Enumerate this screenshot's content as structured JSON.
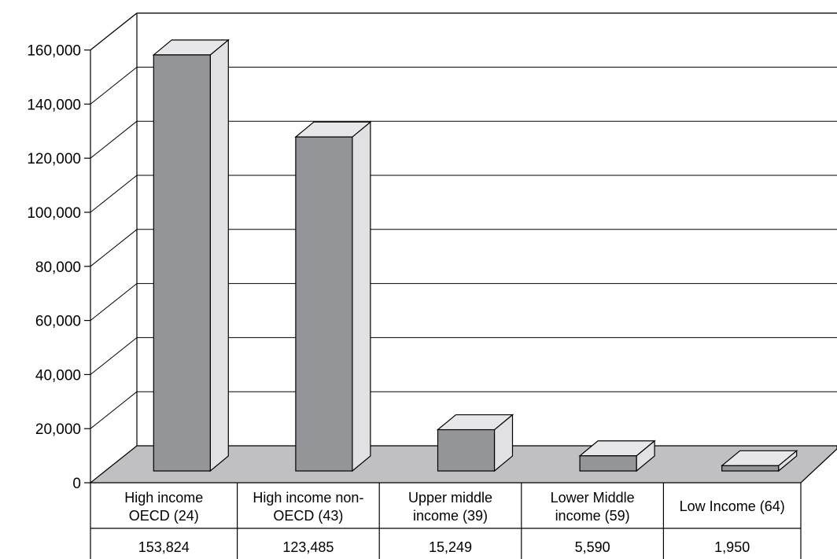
{
  "chart_data": {
    "type": "bar",
    "title": "",
    "xlabel": "",
    "ylabel": "",
    "ylim": [
      0,
      160000
    ],
    "yticks": [
      "0",
      "20,000",
      "40,000",
      "60,000",
      "80,000",
      "100,000",
      "120,000",
      "140,000",
      "160,000"
    ],
    "categories": [
      [
        "High income",
        "OECD (24)"
      ],
      [
        "High income non-",
        "OECD (43)"
      ],
      [
        "Upper middle",
        "income (39)"
      ],
      [
        "Lower Middle",
        "income (59)"
      ],
      [
        "Low Income (64)"
      ]
    ],
    "values": [
      153824,
      123485,
      15249,
      5590,
      1950
    ],
    "value_labels": [
      "153,824",
      "123,485",
      "15,249",
      "5,590",
      "1,950"
    ],
    "grid": true,
    "data_table": true,
    "colors": {
      "bar_front": "#949598",
      "bar_side": "#e1e1e3",
      "bar_top": "#e7e7e9",
      "floor": "#c0c0c2",
      "stroke": "#000000"
    }
  }
}
